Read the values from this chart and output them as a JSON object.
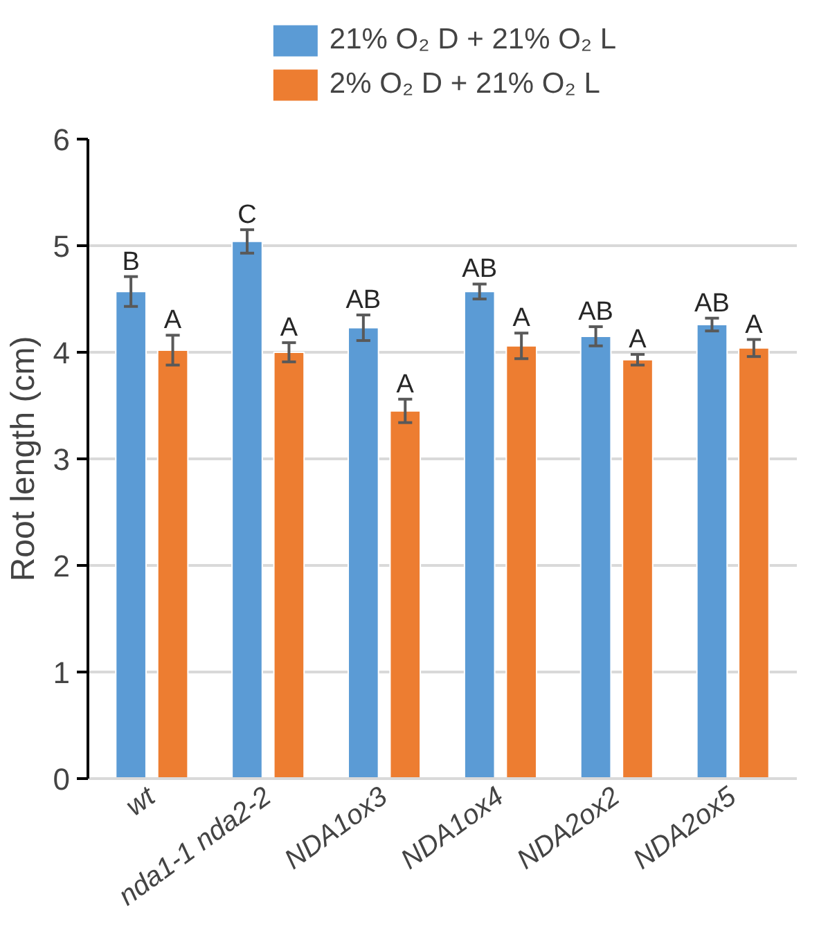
{
  "chart_data": {
    "type": "bar",
    "ylabel": "Root length (cm)",
    "categories": [
      "wt",
      "nda1-1 nda2-2",
      "NDA1ox3",
      "NDA1ox4",
      "NDA2ox2",
      "NDA2ox5"
    ],
    "series": [
      {
        "name": "21% O₂ D + 21% O₂ L",
        "color": "#5b9bd5",
        "values": [
          4.57,
          5.04,
          4.23,
          4.57,
          4.15,
          4.26
        ],
        "errors": [
          0.14,
          0.11,
          0.12,
          0.07,
          0.09,
          0.06
        ]
      },
      {
        "name": "2% O₂ D + 21% O₂ L",
        "color": "#ed7d31",
        "values": [
          4.02,
          4.0,
          3.45,
          4.06,
          3.93,
          4.04
        ],
        "errors": [
          0.14,
          0.09,
          0.11,
          0.12,
          0.05,
          0.08
        ]
      }
    ],
    "annotations": [
      {
        "text": "B",
        "x": "wt",
        "y": 4.57
      },
      {
        "text": "A",
        "x": "wt",
        "y": 4.02
      },
      {
        "text": "C",
        "x": "nda1-1 nda2-2",
        "y": 5.04
      },
      {
        "text": "A",
        "x": "nda1-1 nda2-2",
        "y": 4.0
      },
      {
        "text": "AB",
        "x": "NDA1ox3",
        "y": 4.23
      },
      {
        "text": "A",
        "x": "NDA1ox3",
        "y": 3.45
      },
      {
        "text": "AB",
        "x": "NDA1ox4",
        "y": 4.57
      },
      {
        "text": "A",
        "x": "NDA1ox4",
        "y": 4.06
      },
      {
        "text": "AB",
        "x": "NDA2ox2",
        "y": 4.15
      },
      {
        "text": "A",
        "x": "NDA2ox2",
        "y": 3.93
      },
      {
        "text": "AB",
        "x": "NDA2ox5",
        "y": 4.26
      },
      {
        "text": "A",
        "x": "NDA2ox5",
        "y": 4.04
      }
    ],
    "ylim": [
      0,
      6
    ],
    "yticks": [
      0,
      1,
      2,
      3,
      4,
      5,
      6
    ],
    "grid": "y",
    "legend": "top"
  }
}
